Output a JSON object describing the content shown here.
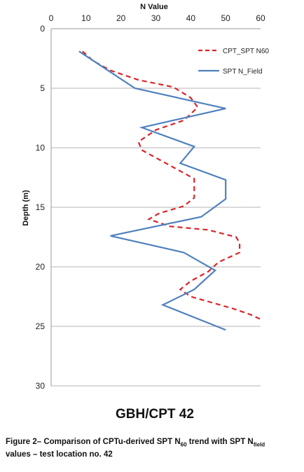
{
  "chart_data": {
    "type": "line",
    "orientation": "depth-down",
    "title": "GBH/CPT 42",
    "xlabel": "N Value",
    "ylabel": "Depth (m)",
    "xlim": [
      0,
      60
    ],
    "ylim": [
      0,
      30
    ],
    "x_ticks": [
      "0",
      "10",
      "20",
      "30",
      "40",
      "50",
      "60"
    ],
    "y_ticks": [
      "0",
      "5",
      "10",
      "15",
      "20",
      "25",
      "30"
    ],
    "grid": "horizontal",
    "legend_position": "top-right",
    "series": [
      {
        "name": "CPT_SPT N60",
        "style": "dashed",
        "color": "#d9262b",
        "points": [
          [
            9,
            1.9
          ],
          [
            12,
            2.7
          ],
          [
            17,
            3.5
          ],
          [
            25,
            4.3
          ],
          [
            35,
            4.9
          ],
          [
            40,
            5.8
          ],
          [
            42,
            6.6
          ],
          [
            38,
            7.7
          ],
          [
            30,
            8.5
          ],
          [
            25,
            9.5
          ],
          [
            26,
            10.2
          ],
          [
            31,
            11.0
          ],
          [
            36,
            11.8
          ],
          [
            41,
            12.6
          ],
          [
            41,
            13.4
          ],
          [
            41,
            14.2
          ],
          [
            38,
            14.9
          ],
          [
            31,
            15.5
          ],
          [
            28,
            16.0
          ],
          [
            34,
            16.6
          ],
          [
            45,
            16.9
          ],
          [
            53,
            17.5
          ],
          [
            54,
            18.0
          ],
          [
            54,
            18.8
          ],
          [
            48,
            19.6
          ],
          [
            45,
            20.4
          ],
          [
            40,
            21.2
          ],
          [
            37,
            21.9
          ],
          [
            40,
            22.5
          ],
          [
            46,
            23.0
          ],
          [
            52,
            23.5
          ],
          [
            57,
            24.0
          ],
          [
            60,
            24.4
          ]
        ]
      },
      {
        "name": "SPT N_Field",
        "style": "solid",
        "color": "#4f81bd",
        "points": [
          [
            8,
            1.9
          ],
          [
            24,
            5.0
          ],
          [
            50,
            6.7
          ],
          [
            26,
            8.3
          ],
          [
            41,
            9.9
          ],
          [
            37,
            11.3
          ],
          [
            50,
            12.7
          ],
          [
            50,
            14.3
          ],
          [
            43,
            15.8
          ],
          [
            17,
            17.4
          ],
          [
            38,
            18.8
          ],
          [
            47,
            20.3
          ],
          [
            41,
            21.9
          ],
          [
            32,
            23.2
          ],
          [
            50,
            25.3
          ]
        ]
      }
    ]
  },
  "caption": {
    "prefix": "Figure 2– Comparison of CPTu-derived SPT N",
    "sub1": "60",
    "middle": " trend with SPT N",
    "sub2": "field",
    "line2": "values – test location no. 42"
  }
}
